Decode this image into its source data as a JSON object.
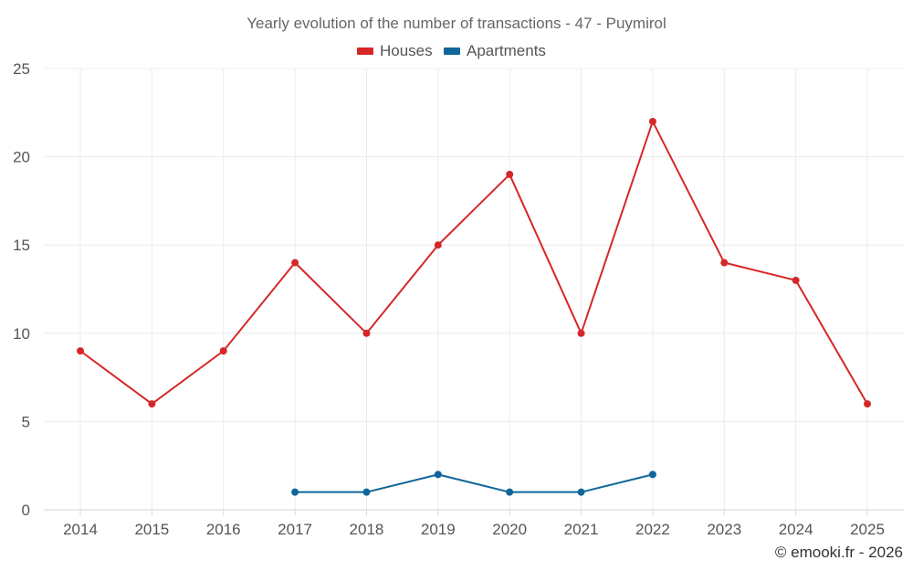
{
  "chart_data": {
    "type": "line",
    "title": "Yearly evolution of the number of transactions - 47 - Puymirol",
    "xlabel": "",
    "ylabel": "",
    "categories": [
      "2014",
      "2015",
      "2016",
      "2017",
      "2018",
      "2019",
      "2020",
      "2021",
      "2022",
      "2023",
      "2024",
      "2025"
    ],
    "ylim": [
      0,
      25
    ],
    "yticks": [
      0,
      5,
      10,
      15,
      20,
      25
    ],
    "grid": true,
    "legend_position": "top-center",
    "series": [
      {
        "name": "Houses",
        "color": "#d62728",
        "values": [
          9,
          6,
          9,
          14,
          10,
          15,
          19,
          10,
          22,
          14,
          13,
          6
        ]
      },
      {
        "name": "Apartments",
        "color": "#0f6699",
        "values": [
          null,
          null,
          null,
          1,
          1,
          2,
          1,
          1,
          2,
          null,
          null,
          null
        ]
      }
    ]
  },
  "credit": "© emooki.fr - 2026"
}
